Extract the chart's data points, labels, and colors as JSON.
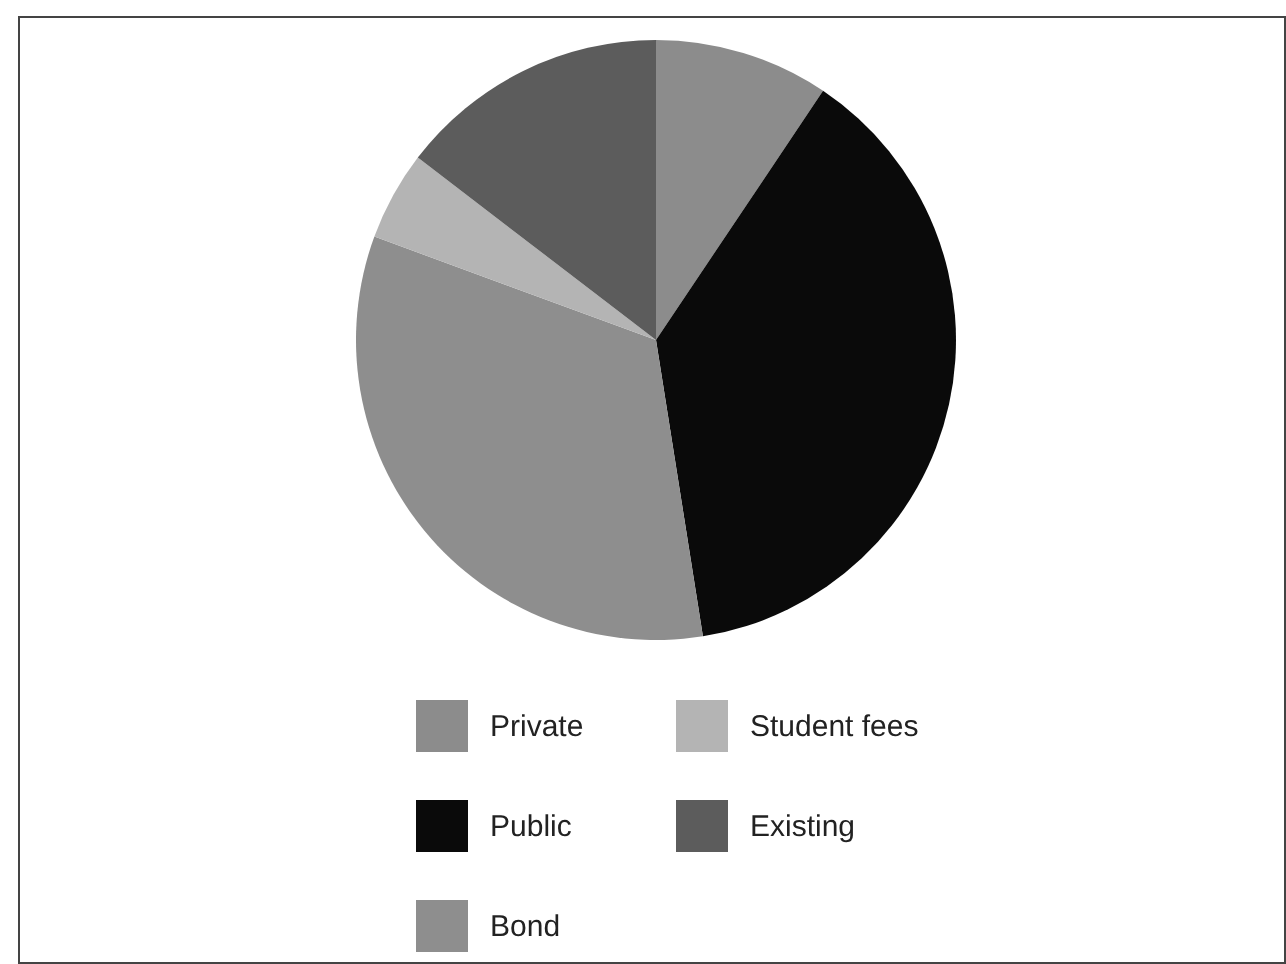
{
  "chart_data": {
    "type": "pie",
    "categories": [
      "Private",
      "Public",
      "Bond",
      "Student fees",
      "Existing"
    ],
    "values": [
      9.4,
      38.1,
      33.1,
      4.8,
      14.6
    ],
    "colors": [
      "#8c8c8c",
      "#0a0a0a",
      "#8e8e8e",
      "#b4b4b4",
      "#5c5c5c"
    ],
    "legend": "bottom"
  }
}
